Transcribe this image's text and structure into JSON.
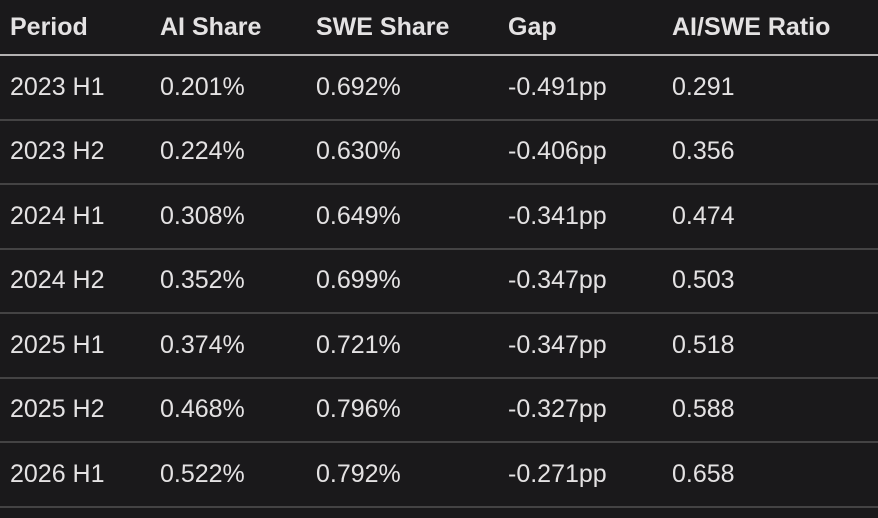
{
  "chart_data": {
    "type": "table",
    "columns": [
      "Period",
      "AI Share",
      "SWE Share",
      "Gap",
      "AI/SWE Ratio"
    ],
    "rows": [
      [
        "2023 H1",
        "0.201%",
        "0.692%",
        "-0.491pp",
        "0.291"
      ],
      [
        "2023 H2",
        "0.224%",
        "0.630%",
        "-0.406pp",
        "0.356"
      ],
      [
        "2024 H1",
        "0.308%",
        "0.649%",
        "-0.341pp",
        "0.474"
      ],
      [
        "2024 H2",
        "0.352%",
        "0.699%",
        "-0.347pp",
        "0.503"
      ],
      [
        "2025 H1",
        "0.374%",
        "0.721%",
        "-0.347pp",
        "0.518"
      ],
      [
        "2025 H2",
        "0.468%",
        "0.796%",
        "-0.327pp",
        "0.588"
      ],
      [
        "2026 H1",
        "0.522%",
        "0.792%",
        "-0.271pp",
        "0.658"
      ]
    ]
  },
  "colors": {
    "background": "#1a191b",
    "text": "#e4e2e3",
    "header_divider": "#b3b1b2",
    "row_divider": "#444344"
  }
}
